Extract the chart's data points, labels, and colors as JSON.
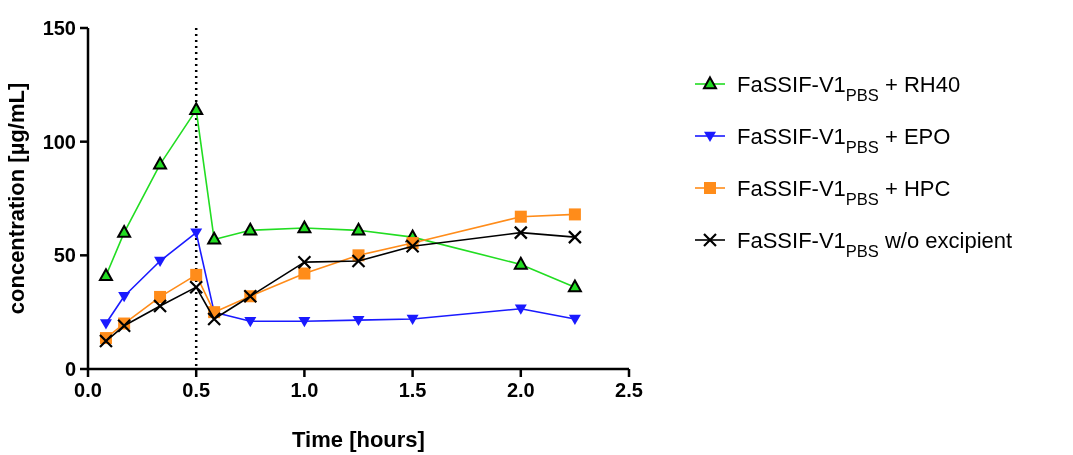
{
  "chart_data": {
    "type": "line",
    "xlabel": "Time [hours]",
    "ylabel": "concentration [µg/mL]",
    "xlim": [
      0,
      2.5
    ],
    "ylim": [
      0,
      150
    ],
    "xticks": [
      {
        "value": 0,
        "label": "0.0"
      },
      {
        "value": 0.5,
        "label": "0.5"
      },
      {
        "value": 1,
        "label": "1.0"
      },
      {
        "value": 1.5,
        "label": "1.5"
      },
      {
        "value": 2,
        "label": "2.0"
      },
      {
        "value": 2.5,
        "label": "2.5"
      }
    ],
    "yticks": [
      0,
      50,
      100,
      150
    ],
    "x": [
      0.083,
      0.167,
      0.333,
      0.5,
      0.583,
      0.75,
      1.0,
      1.25,
      1.5,
      2.0,
      2.25
    ],
    "grid": false,
    "legend": "right",
    "ref_lines": [
      {
        "axis": "x",
        "value": 0.5,
        "color": "#000000",
        "line_style": "dotted"
      }
    ],
    "series": [
      {
        "name": "FaSSIF-V1$_{PBS}$ + RH40",
        "color": "#22dd22",
        "marker": "triangle",
        "values": [
          41,
          60,
          90,
          114,
          57,
          61,
          62,
          61,
          58,
          46,
          36
        ]
      },
      {
        "name": "FaSSIF-V1$_{PBS}$ + EPO",
        "color": "#1a1aff",
        "marker": "triangle-down",
        "values": [
          20,
          32,
          47.5,
          60,
          25,
          21,
          21,
          21.5,
          22,
          26.5,
          22
        ]
      },
      {
        "name": "FaSSIF-V1$_{PBS}$ + HPC",
        "color": "#ff8c1a",
        "marker": "square",
        "values": [
          13.6,
          20,
          31.7,
          41.4,
          25,
          32,
          42,
          50,
          55.4,
          67,
          68
        ]
      },
      {
        "name": "FaSSIF-V1$_{PBS}$ w/o excipient",
        "color": "#000000",
        "marker": "cross",
        "values": [
          12.3,
          19,
          27.7,
          36,
          22,
          32,
          47,
          47.5,
          54,
          60,
          58
        ]
      }
    ]
  }
}
